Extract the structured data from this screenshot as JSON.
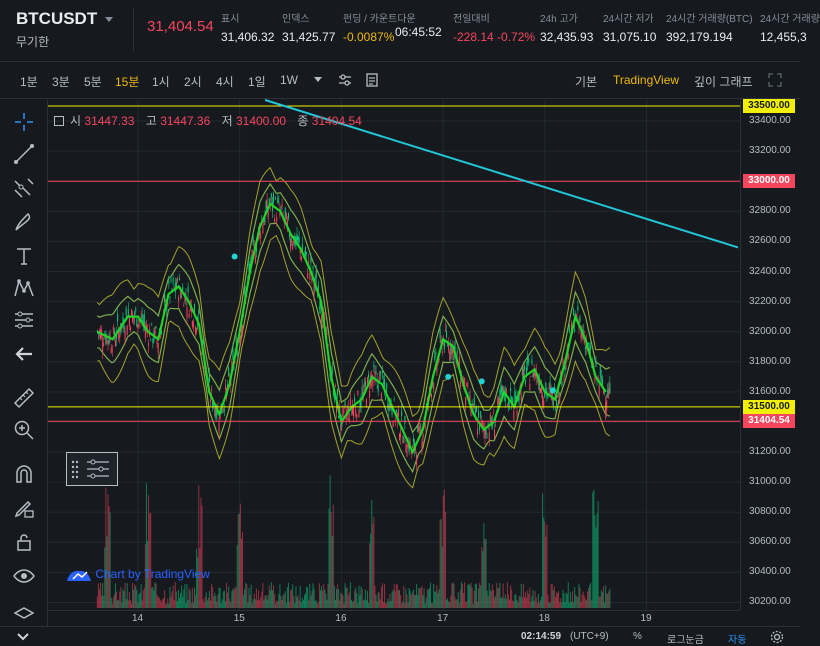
{
  "header": {
    "symbol": "BTCUSDT",
    "subtitle": "무기한",
    "last_price": "31,404.54",
    "stats": [
      {
        "label": "표시",
        "value": "31,406.32",
        "tone": "neutral"
      },
      {
        "label": "인덱스",
        "value": "31,425.77",
        "tone": "neutral"
      },
      {
        "label": "펀딩 / 카운트다운",
        "value": "-0.0087%",
        "value2": "06:45:52",
        "tone": "warn"
      },
      {
        "label": "전일대비",
        "value": "-228.14 -0.72%",
        "tone": "neg"
      },
      {
        "label": "24h 고가",
        "value": "32,435.93",
        "tone": "neutral"
      },
      {
        "label": "24시간 저가",
        "value": "31,075.10",
        "tone": "neutral"
      },
      {
        "label": "24시간 거래량(BTC)",
        "value": "392,179.194",
        "tone": "neutral"
      },
      {
        "label": "24시간 거래량",
        "value": "12,455,3",
        "tone": "neutral"
      }
    ]
  },
  "toolbar": {
    "timeframes": [
      "1분",
      "3분",
      "5분",
      "15분",
      "1시",
      "2시",
      "4시",
      "1일",
      "1W"
    ],
    "active_timeframe": "15분",
    "view_basic": "기본",
    "view_tradingview": "TradingView",
    "view_depth": "깊이 그래프"
  },
  "chart_overlay": {
    "ohlc": {
      "open_label": "시",
      "open": "31447.33",
      "high_label": "고",
      "high": "31447.36",
      "low_label": "저",
      "low": "31400.00",
      "close_label": "종",
      "close": "31404.54"
    },
    "watermark": "Chart by TradingView"
  },
  "colors": {
    "background": "#161a1e",
    "up": "#0ecb81",
    "down": "#f6465d",
    "accent": "#f0b90b",
    "ma": "#22d32a",
    "band": "#a3a32a",
    "trendline": "#22c6d9"
  },
  "chart_data": {
    "type": "candlestick",
    "y_axis_ticks": [
      33400,
      33200,
      33000,
      32800,
      32600,
      32400,
      32200,
      32000,
      31800,
      31600,
      31400,
      31200,
      31000,
      30800,
      30600,
      30400,
      30200
    ],
    "ylim": [
      30150,
      33540
    ],
    "x_labels": [
      "14",
      "15",
      "16",
      "17",
      "18",
      "19"
    ],
    "horizontal_lines": [
      {
        "price": "33500.00",
        "value": 33500,
        "color": "#f0f000"
      },
      {
        "price": "33000.00",
        "value": 33000,
        "color": "#f6465d"
      },
      {
        "price": "31500.00",
        "value": 31500,
        "color": "#f0f000"
      },
      {
        "price": "31404.54",
        "value": 31404.54,
        "color": "#f6465d"
      }
    ],
    "trendline": {
      "from": [
        "15.25",
        33540
      ],
      "to": [
        "19.9",
        32560
      ]
    },
    "ma_path": [
      [
        13.6,
        32000
      ],
      [
        13.75,
        31950
      ],
      [
        13.9,
        32100
      ],
      [
        14.0,
        32100
      ],
      [
        14.1,
        32000
      ],
      [
        14.2,
        31950
      ],
      [
        14.3,
        32250
      ],
      [
        14.4,
        32300
      ],
      [
        14.5,
        32200
      ],
      [
        14.6,
        32050
      ],
      [
        14.7,
        31600
      ],
      [
        14.8,
        31450
      ],
      [
        14.9,
        31650
      ],
      [
        15.0,
        32000
      ],
      [
        15.1,
        32400
      ],
      [
        15.2,
        32700
      ],
      [
        15.3,
        32850
      ],
      [
        15.4,
        32800
      ],
      [
        15.5,
        32650
      ],
      [
        15.6,
        32550
      ],
      [
        15.7,
        32400
      ],
      [
        15.8,
        32200
      ],
      [
        15.9,
        31700
      ],
      [
        16.0,
        31400
      ],
      [
        16.1,
        31500
      ],
      [
        16.2,
        31550
      ],
      [
        16.3,
        31700
      ],
      [
        16.4,
        31650
      ],
      [
        16.5,
        31500
      ],
      [
        16.6,
        31350
      ],
      [
        16.7,
        31200
      ],
      [
        16.8,
        31350
      ],
      [
        16.9,
        31700
      ],
      [
        17.0,
        31950
      ],
      [
        17.1,
        31900
      ],
      [
        17.2,
        31650
      ],
      [
        17.3,
        31450
      ],
      [
        17.4,
        31350
      ],
      [
        17.5,
        31400
      ],
      [
        17.6,
        31600
      ],
      [
        17.7,
        31500
      ],
      [
        17.8,
        31700
      ],
      [
        17.9,
        31750
      ],
      [
        18.0,
        31600
      ],
      [
        18.1,
        31550
      ],
      [
        18.2,
        31800
      ],
      [
        18.3,
        32100
      ],
      [
        18.4,
        31950
      ],
      [
        18.5,
        31700
      ],
      [
        18.6,
        31600
      ]
    ],
    "volume_peaks": [
      13.7,
      14.1,
      14.6,
      15.0,
      15.9,
      16.3,
      17.0,
      17.4,
      18.0,
      18.5
    ]
  },
  "axis": {
    "timestamp": "02:14:59",
    "timezone": "(UTC+9)",
    "percent": "%",
    "log_scale": "로그눈금",
    "auto": "자동"
  }
}
